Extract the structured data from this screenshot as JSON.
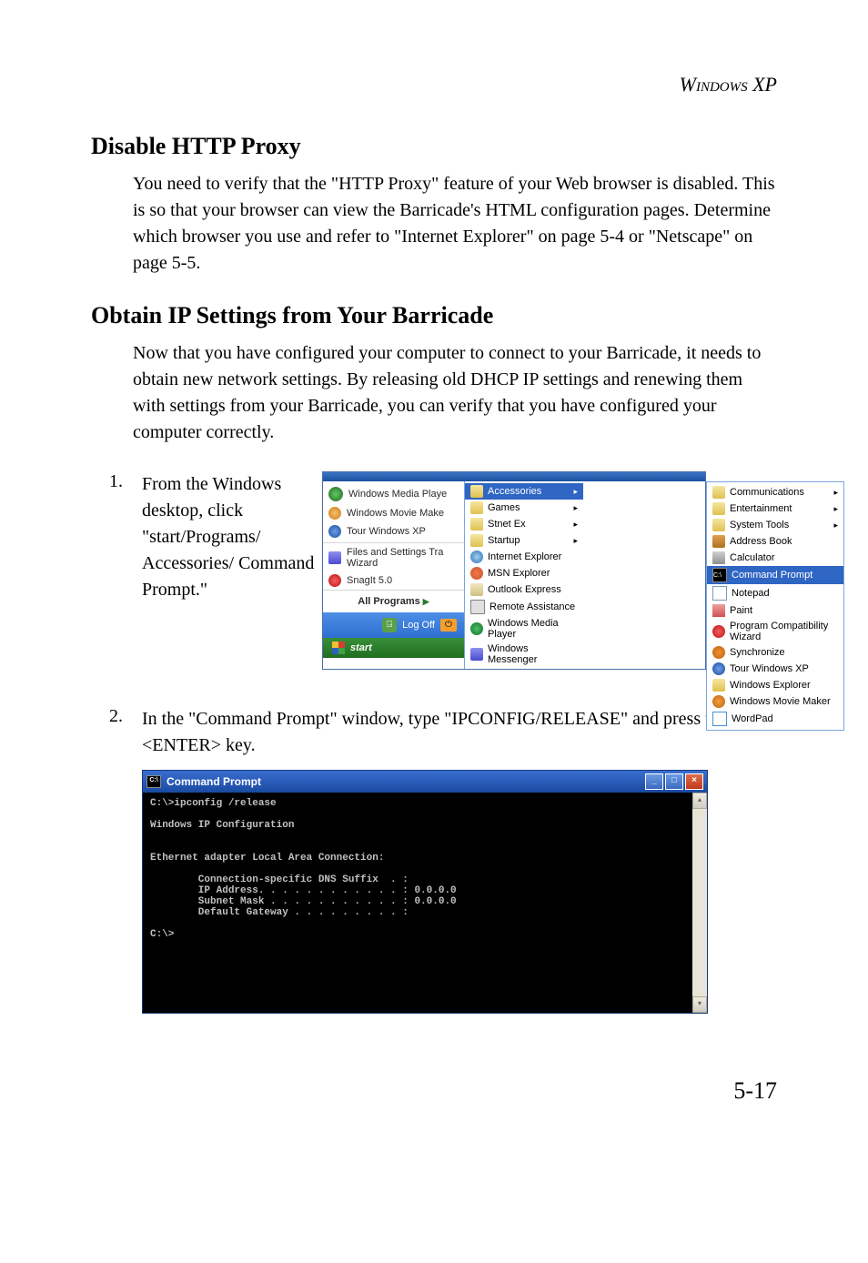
{
  "header": {
    "title": "Windows XP"
  },
  "section1": {
    "title": "Disable HTTP Proxy",
    "body": "You need to verify that the \"HTTP Proxy\" feature of your Web browser is disabled. This is so that your browser can view the Barricade's HTML configuration pages. Determine which browser you use and refer to \"Internet Explorer\" on page 5-4 or \"Netscape\" on page 5-5."
  },
  "section2": {
    "title": "Obtain IP Settings from Your Barricade",
    "body": "Now that you have configured your computer to connect to your Barricade, it needs to obtain new network settings. By releasing old DHCP IP settings and renewing them with settings from your Barricade, you can verify that you have configured your computer correctly."
  },
  "step1": {
    "num": "1.",
    "text": "From the Windows desktop, click \"start/Programs/ Accessories/ Command Prompt.\""
  },
  "step2": {
    "num": "2.",
    "text": "In the \"Command Prompt\" window, type \"IPCONFIG/RELEASE\" and press the <ENTER> key."
  },
  "startmenu": {
    "top_edge_label": "",
    "left": [
      {
        "label": "Windows Media Playe",
        "icon": "ic-circle-green"
      },
      {
        "label": "Windows Movie Make",
        "icon": "ic-circle-orange"
      },
      {
        "label": "Tour Windows XP",
        "icon": "ic-circle-blue"
      },
      {
        "label": "Files and Settings Tra Wizard",
        "icon": "ic-people"
      },
      {
        "label": "SnagIt 5.0",
        "icon": "ic-redx"
      }
    ],
    "all_programs": "All Programs",
    "logoff": "Log Off",
    "start_label": "start",
    "mid": [
      {
        "label": "Accessories",
        "icon": "ic-folder",
        "hl": true,
        "arrow": true
      },
      {
        "label": "Games",
        "icon": "ic-folder",
        "arrow": true
      },
      {
        "label": "Stnet Ex",
        "icon": "ic-folder",
        "arrow": true
      },
      {
        "label": "Startup",
        "icon": "ic-folder",
        "arrow": true
      },
      {
        "label": "Internet Explorer",
        "icon": "ic-globe"
      },
      {
        "label": "MSN Explorer",
        "icon": "ic-msn"
      },
      {
        "label": "Outlook Express",
        "icon": "ic-mail"
      },
      {
        "label": "Remote Assistance",
        "icon": "ic-pc"
      },
      {
        "label": "Windows Media Player",
        "icon": "ic-wm"
      },
      {
        "label": "Windows Messenger",
        "icon": "ic-people"
      }
    ],
    "right": [
      {
        "label": "Communications",
        "icon": "ic-folder",
        "arrow": true
      },
      {
        "label": "Entertainment",
        "icon": "ic-folder",
        "arrow": true
      },
      {
        "label": "System Tools",
        "icon": "ic-folder",
        "arrow": true
      },
      {
        "label": "Address Book",
        "icon": "ic-book"
      },
      {
        "label": "Calculator",
        "icon": "ic-calc"
      },
      {
        "label": "Command Prompt",
        "icon": "ic-cmd",
        "hl": true
      },
      {
        "label": "Notepad",
        "icon": "ic-note"
      },
      {
        "label": "Paint",
        "icon": "ic-paint"
      },
      {
        "label": "Program Compatibility Wizard",
        "icon": "ic-redx"
      },
      {
        "label": "Synchronize",
        "icon": "ic-sync"
      },
      {
        "label": "Tour Windows XP",
        "icon": "ic-circle-blue"
      },
      {
        "label": "Windows Explorer",
        "icon": "ic-we"
      },
      {
        "label": "Windows Movie Maker",
        "icon": "ic-wmm"
      },
      {
        "label": "WordPad",
        "icon": "ic-wp"
      }
    ]
  },
  "cmd": {
    "title": "Command Prompt",
    "output": "C:\\>ipconfig /release\n\nWindows IP Configuration\n\n\nEthernet adapter Local Area Connection:\n\n        Connection-specific DNS Suffix  . :\n        IP Address. . . . . . . . . . . . : 0.0.0.0\n        Subnet Mask . . . . . . . . . . . : 0.0.0.0\n        Default Gateway . . . . . . . . . :\n\nC:\\>"
  },
  "pagenum": "5-17"
}
